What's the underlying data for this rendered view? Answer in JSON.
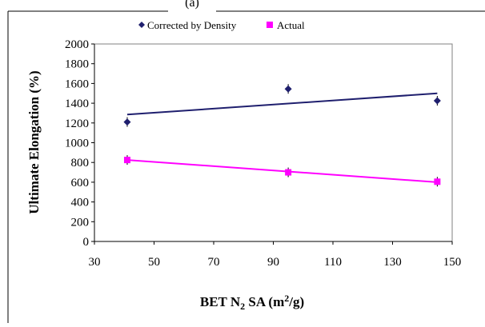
{
  "chart_data": {
    "type": "scatter",
    "title": "",
    "panel_label": "(a)",
    "xlabel_parts": [
      "BET N",
      "2",
      " SA (m",
      "2",
      "/g)"
    ],
    "ylabel": "Ultimate Elongation (%)",
    "xlim": [
      30,
      150
    ],
    "ylim": [
      0,
      2000
    ],
    "x_ticks": [
      30,
      50,
      70,
      90,
      110,
      130,
      150
    ],
    "y_ticks": [
      0,
      200,
      400,
      600,
      800,
      1000,
      1200,
      1400,
      1600,
      1800,
      2000
    ],
    "grid": false,
    "legend_position": "top",
    "series": [
      {
        "name": "Corrected by Density",
        "marker": "diamond",
        "color": "#1f1f6e",
        "x": [
          41,
          95,
          145
        ],
        "y": [
          1210,
          1545,
          1425
        ],
        "trendline": [
          [
            41,
            1285
          ],
          [
            145,
            1500
          ]
        ]
      },
      {
        "name": "Actual",
        "marker": "square",
        "color": "#ff00ff",
        "x": [
          41,
          95,
          145
        ],
        "y": [
          825,
          700,
          605
        ],
        "trendline": [
          [
            41,
            825
          ],
          [
            145,
            600
          ]
        ]
      }
    ]
  }
}
